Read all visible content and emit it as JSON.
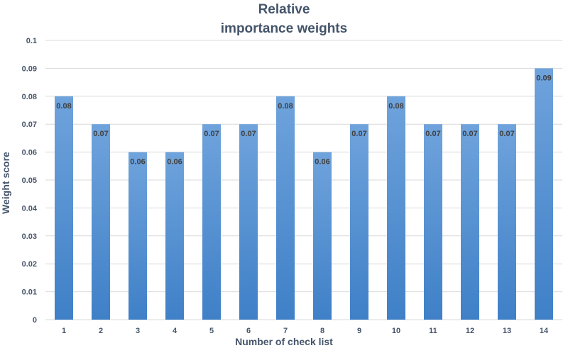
{
  "chart_data": {
    "type": "bar",
    "title_lines": [
      "Relative",
      "importance weights"
    ],
    "xlabel": "Number of check list",
    "ylabel": "Weight score",
    "categories": [
      "1",
      "2",
      "3",
      "4",
      "5",
      "6",
      "7",
      "8",
      "9",
      "10",
      "11",
      "12",
      "13",
      "14"
    ],
    "values": [
      0.08,
      0.07,
      0.06,
      0.06,
      0.07,
      0.07,
      0.08,
      0.06,
      0.07,
      0.08,
      0.07,
      0.07,
      0.07,
      0.09
    ],
    "data_labels": [
      "0.08",
      "0.07",
      "0.06",
      "0.06",
      "0.07",
      "0.07",
      "0.08",
      "0.06",
      "0.07",
      "0.08",
      "0.07",
      "0.07",
      "0.07",
      "0.09"
    ],
    "y_ticks": [
      "0",
      "0.01",
      "0.02",
      "0.03",
      "0.04",
      "0.05",
      "0.06",
      "0.07",
      "0.08",
      "0.09",
      "0.1"
    ],
    "ylim": [
      0,
      0.1
    ],
    "grid": true,
    "legend": "none",
    "colors": {
      "bar_top": "#6fa3dc",
      "bar_bottom": "#3f80c7",
      "text": "#44546a",
      "grid": "#d9d9d9"
    }
  }
}
